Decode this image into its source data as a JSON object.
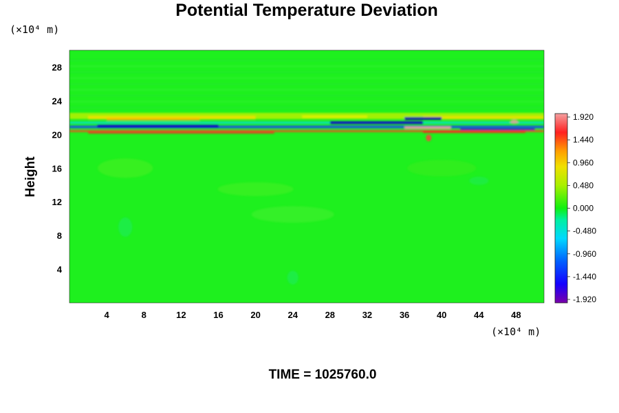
{
  "chart_data": {
    "type": "heatmap",
    "title": "Potential Temperature Deviation",
    "ylabel": "Height",
    "x_unit_label": "(×10⁴ m)",
    "y_unit_label": "(×10⁴ m)",
    "x_ticks": [
      4,
      8,
      12,
      16,
      20,
      24,
      28,
      32,
      36,
      40,
      44,
      48
    ],
    "y_ticks": [
      4,
      8,
      12,
      16,
      20,
      24,
      28
    ],
    "xlim": [
      0,
      51
    ],
    "ylim": [
      0,
      30
    ],
    "colorbar": {
      "range": [
        -1.92,
        1.92
      ],
      "tick_labels": [
        "1.920",
        "1.440",
        "0.960",
        "0.480",
        "0.000",
        "-0.480",
        "-0.960",
        "-1.440",
        "-1.920"
      ]
    },
    "field_summary": "Background near 0.000 (green); strong alternating positive/negative band at height ~20-22 (x10^4 m) spanning the full domain, with largest negative values near x ~ 10-14 and x ~ 32-40 and positive values near x ~ 36-40."
  },
  "footer": {
    "time_label": "TIME = 1025760.0"
  }
}
